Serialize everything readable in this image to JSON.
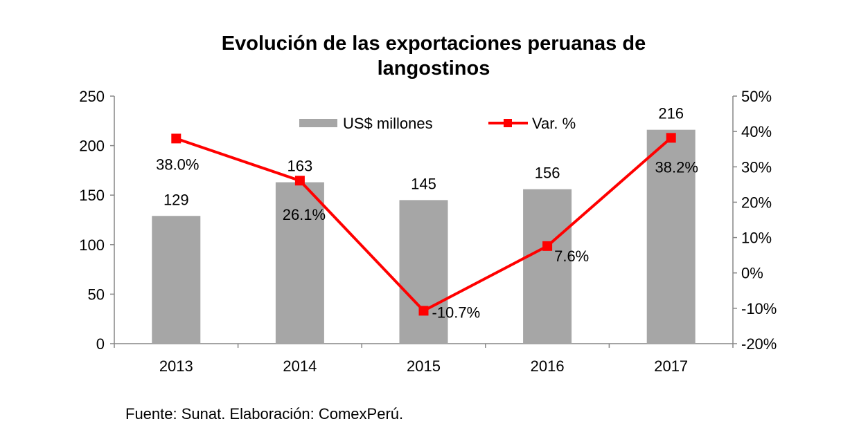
{
  "chart_data": {
    "type": "bar+line",
    "title_lines": [
      "Evolución de las exportaciones peruanas de",
      "langostinos"
    ],
    "categories": [
      "2013",
      "2014",
      "2015",
      "2016",
      "2017"
    ],
    "series": [
      {
        "name": "US$ millones",
        "type": "bar",
        "axis": "left",
        "values": [
          129,
          163,
          145,
          156,
          216
        ],
        "labels": [
          "129",
          "163",
          "145",
          "156",
          "216"
        ],
        "color": "#a6a6a6"
      },
      {
        "name": "Var. %",
        "type": "line",
        "axis": "right",
        "values": [
          38.0,
          26.1,
          -10.7,
          7.6,
          38.2
        ],
        "labels": [
          "38.0%",
          "26.1%",
          "-10.7%",
          "7.6%",
          "38.2%"
        ],
        "color": "#ff0000"
      }
    ],
    "left_axis": {
      "ylim": [
        0,
        250
      ],
      "ticks": [
        "0",
        "50",
        "100",
        "150",
        "200",
        "250"
      ]
    },
    "right_axis": {
      "ylim": [
        -20,
        50
      ],
      "ticks": [
        "-20%",
        "-10%",
        "0%",
        "10%",
        "20%",
        "30%",
        "40%",
        "50%"
      ]
    },
    "grid": false,
    "legend_placement": "top-center"
  },
  "source": "Fuente: Sunat. Elaboración: ComexPerú."
}
